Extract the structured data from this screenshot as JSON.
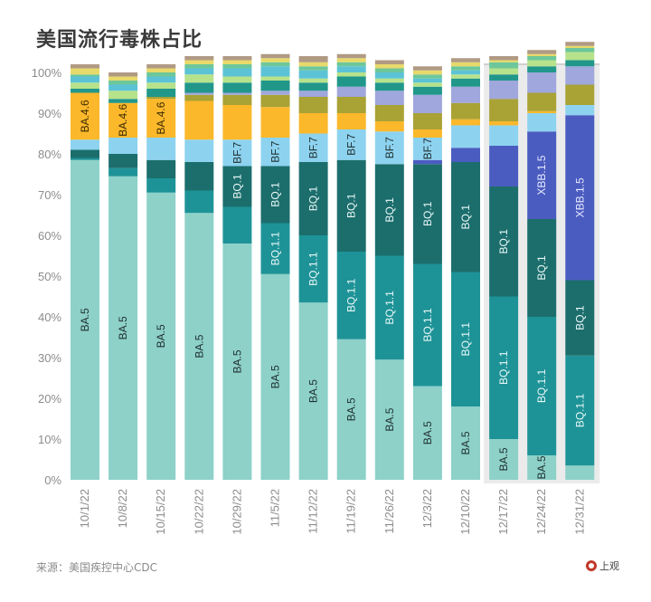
{
  "title": "美国流行毒株占比",
  "source": "来源：美国疾控中心CDC",
  "logo_text": "上观",
  "chart_data": {
    "type": "bar",
    "stacked": true,
    "orientation": "vertical",
    "title": "美国流行毒株占比",
    "xlabel": "",
    "ylabel": "",
    "ylim": [
      0,
      100
    ],
    "yticks": [
      "0%",
      "10%",
      "20%",
      "30%",
      "40%",
      "50%",
      "60%",
      "70%",
      "80%",
      "90%",
      "100%"
    ],
    "grid": false,
    "legend": "none (inline segment labels)",
    "highlighted_categories": [
      "12/17/22",
      "12/24/22",
      "12/31/22"
    ],
    "categories": [
      "10/1/22",
      "10/8/22",
      "10/15/22",
      "10/22/22",
      "10/29/22",
      "11/5/22",
      "11/12/22",
      "11/19/22",
      "11/26/22",
      "12/3/22",
      "12/10/22",
      "12/17/22",
      "12/24/22",
      "12/31/22"
    ],
    "series": [
      {
        "name": "BA.5",
        "color": "#8dd1c9",
        "label_color": "#1f2e2e",
        "values": [
          78.5,
          74.5,
          70.5,
          65.5,
          58,
          50.5,
          43.5,
          34.5,
          29.5,
          23,
          18,
          10,
          6,
          3.5
        ]
      },
      {
        "name": "BQ.1.1",
        "color": "#1e9397",
        "label_color": "#e8f7f6",
        "values": [
          0.5,
          2,
          3.5,
          5.5,
          9,
          12.5,
          16.5,
          21.5,
          25.5,
          30,
          33,
          35,
          34,
          27
        ]
      },
      {
        "name": "BQ.1",
        "color": "#1c6e6d",
        "label_color": "#e8f7f6",
        "values": [
          2,
          3.5,
          4.5,
          7,
          10,
          14,
          18,
          22.5,
          22.5,
          24.5,
          27,
          27,
          24,
          18.5
        ]
      },
      {
        "name": "XBB.1.5",
        "color": "#4b5cc0",
        "label_color": "#e8ecff",
        "values": [
          0,
          0,
          0,
          0,
          0,
          0,
          0,
          0,
          0,
          1,
          3.5,
          10,
          21.5,
          40.5
        ]
      },
      {
        "name": "BF.7",
        "color": "#8dd3f0",
        "label_color": "#1f2e2e",
        "values": [
          2.5,
          4,
          5.5,
          5.5,
          6.5,
          7,
          7,
          7.5,
          8,
          5.5,
          5.5,
          5,
          4.5,
          2.5
        ]
      },
      {
        "name": "BA.4.6",
        "color": "#fbb82b",
        "label_color": "#3a2a00",
        "values": [
          11.5,
          8.5,
          9.5,
          9.5,
          8.5,
          7.5,
          5,
          4,
          2.5,
          2,
          1.5,
          1,
          0.5,
          0
        ]
      },
      {
        "name": "Other-olive",
        "color": "#a9a235",
        "label_color": "",
        "values": [
          0,
          0,
          0.5,
          1.5,
          2.5,
          3,
          4,
          4,
          4,
          4,
          4,
          5.5,
          4.5,
          5
        ]
      },
      {
        "name": "Other-lavender",
        "color": "#9fa7dc",
        "label_color": "",
        "values": [
          0,
          0,
          0,
          0.5,
          0.5,
          1,
          1.5,
          2.5,
          3.5,
          4.5,
          4,
          4.5,
          5,
          4.5
        ]
      },
      {
        "name": "Other-teal",
        "color": "#21978a",
        "label_color": "",
        "values": [
          1,
          1,
          2,
          2.5,
          2.5,
          2.5,
          2,
          2.5,
          2,
          2,
          2,
          1.5,
          1.5,
          1.5
        ]
      },
      {
        "name": "Other-lightgreen",
        "color": "#b7e28c",
        "label_color": "",
        "values": [
          1.5,
          2,
          1.5,
          2,
          1.5,
          1,
          1,
          1,
          1,
          1,
          1,
          1.5,
          1.5,
          2
        ]
      },
      {
        "name": "Other-sky",
        "color": "#5cc3d6",
        "label_color": "",
        "values": [
          1.5,
          1.5,
          1.5,
          1.5,
          2,
          2.5,
          2,
          1.5,
          1.5,
          1,
          1,
          0,
          0,
          0
        ]
      },
      {
        "name": "Other-green",
        "color": "#6dc79a",
        "label_color": "",
        "values": [
          0.5,
          1,
          1,
          1,
          1,
          1,
          1,
          1,
          1,
          1,
          1,
          1.5,
          1,
          1
        ]
      },
      {
        "name": "Other-yellow",
        "color": "#e8d96b",
        "label_color": "",
        "values": [
          1.5,
          1,
          1,
          1,
          1,
          1,
          1,
          1,
          1,
          1,
          1,
          0.5,
          0.5,
          0.5
        ]
      },
      {
        "name": "Other-tan",
        "color": "#b09a84",
        "label_color": "",
        "values": [
          1,
          1,
          1,
          1,
          1,
          1,
          1.5,
          1,
          1,
          1,
          1,
          1,
          1,
          1
        ]
      }
    ],
    "segment_labels": [
      {
        "category": "10/1/22",
        "series": "BA.5",
        "text": "BA.5"
      },
      {
        "category": "10/1/22",
        "series": "BA.4.6",
        "text": "BA.4.6"
      },
      {
        "category": "10/8/22",
        "series": "BA.5",
        "text": "BA.5"
      },
      {
        "category": "10/8/22",
        "series": "BA.4.6",
        "text": "BA.4.6"
      },
      {
        "category": "10/15/22",
        "series": "BA.5",
        "text": "BA.5"
      },
      {
        "category": "10/15/22",
        "series": "BA.4.6",
        "text": "BA.4.6"
      },
      {
        "category": "10/22/22",
        "series": "BA.5",
        "text": "BA.5"
      },
      {
        "category": "10/29/22",
        "series": "BA.5",
        "text": "BA.5"
      },
      {
        "category": "10/29/22",
        "series": "BQ.1",
        "text": "BQ.1"
      },
      {
        "category": "10/29/22",
        "series": "BF.7",
        "text": "BF.7"
      },
      {
        "category": "11/5/22",
        "series": "BA.5",
        "text": "BA.5"
      },
      {
        "category": "11/5/22",
        "series": "BQ.1.1",
        "text": "BQ.1.1"
      },
      {
        "category": "11/5/22",
        "series": "BQ.1",
        "text": "BQ.1"
      },
      {
        "category": "11/5/22",
        "series": "BF.7",
        "text": "BF.7"
      },
      {
        "category": "11/12/22",
        "series": "BA.5",
        "text": "BA.5"
      },
      {
        "category": "11/12/22",
        "series": "BQ.1.1",
        "text": "BQ.1.1"
      },
      {
        "category": "11/12/22",
        "series": "BQ.1",
        "text": "BQ.1"
      },
      {
        "category": "11/12/22",
        "series": "BF.7",
        "text": "BF.7"
      },
      {
        "category": "11/19/22",
        "series": "BA.5",
        "text": "BA.5"
      },
      {
        "category": "11/19/22",
        "series": "BQ.1.1",
        "text": "BQ.1.1"
      },
      {
        "category": "11/19/22",
        "series": "BQ.1",
        "text": "BQ.1"
      },
      {
        "category": "11/19/22",
        "series": "BF.7",
        "text": "BF.7"
      },
      {
        "category": "11/26/22",
        "series": "BA.5",
        "text": "BA.5"
      },
      {
        "category": "11/26/22",
        "series": "BQ.1.1",
        "text": "BQ.1.1"
      },
      {
        "category": "11/26/22",
        "series": "BQ.1",
        "text": "BQ.1"
      },
      {
        "category": "11/26/22",
        "series": "BF.7",
        "text": "BF.7"
      },
      {
        "category": "12/3/22",
        "series": "BA.5",
        "text": "BA.5"
      },
      {
        "category": "12/3/22",
        "series": "BQ.1.1",
        "text": "BQ.1.1"
      },
      {
        "category": "12/3/22",
        "series": "BQ.1",
        "text": "BQ.1"
      },
      {
        "category": "12/3/22",
        "series": "BF.7",
        "text": "BF.7"
      },
      {
        "category": "12/10/22",
        "series": "BA.5",
        "text": "BA.5"
      },
      {
        "category": "12/10/22",
        "series": "BQ.1.1",
        "text": "BQ.1.1"
      },
      {
        "category": "12/10/22",
        "series": "BQ.1",
        "text": "BQ.1"
      },
      {
        "category": "12/17/22",
        "series": "BA.5",
        "text": "BA.5"
      },
      {
        "category": "12/17/22",
        "series": "BQ.1.1",
        "text": "BQ.1.1"
      },
      {
        "category": "12/17/22",
        "series": "BQ.1",
        "text": "BQ.1"
      },
      {
        "category": "12/24/22",
        "series": "BA.5",
        "text": "BA.5"
      },
      {
        "category": "12/24/22",
        "series": "BQ.1.1",
        "text": "BQ.1.1"
      },
      {
        "category": "12/24/22",
        "series": "BQ.1",
        "text": "BQ.1"
      },
      {
        "category": "12/24/22",
        "series": "XBB.1.5",
        "text": "XBB.1.5"
      },
      {
        "category": "12/31/22",
        "series": "BQ.1.1",
        "text": "BQ.1.1"
      },
      {
        "category": "12/31/22",
        "series": "BQ.1",
        "text": "BQ.1"
      },
      {
        "category": "12/31/22",
        "series": "XBB.1.5",
        "text": "XBB.1.5"
      }
    ]
  }
}
